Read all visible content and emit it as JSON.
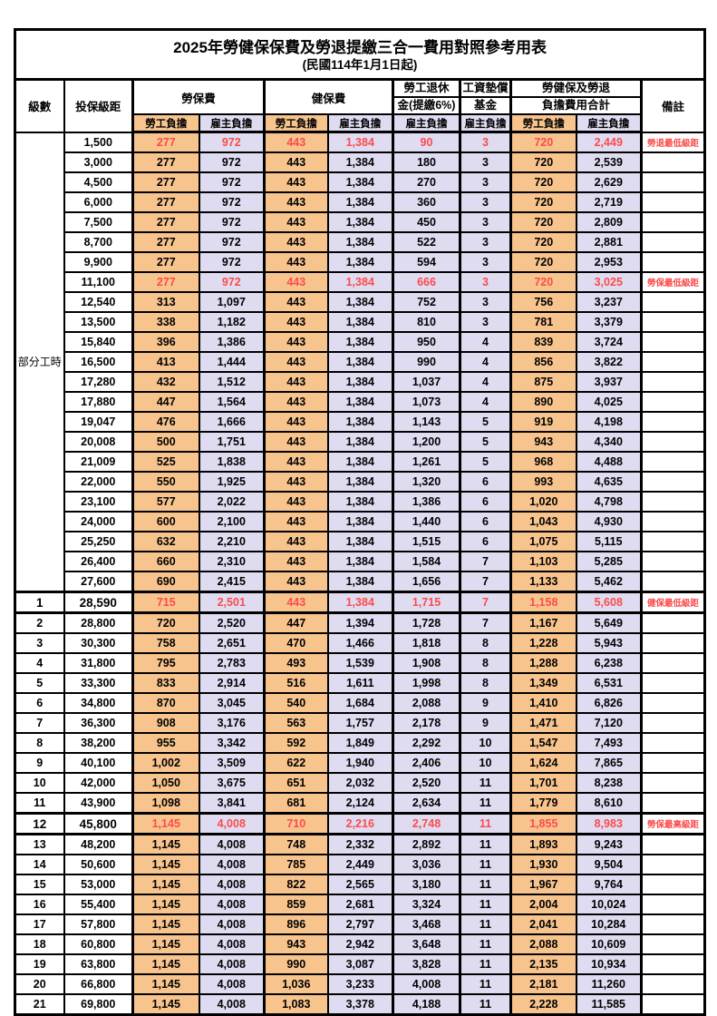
{
  "title": "2025年勞健保保費及勞退提繳三合一費用對照參考用表",
  "subtitle": "(民國114年1月1日起)",
  "colors": {
    "employee_bg": "#F8C48E",
    "employer_bg": "#DFDCF1",
    "highlight_red": "#FB4B4B",
    "border": "#000000",
    "background": "#FFFFFF"
  },
  "header": {
    "level": "級數",
    "bracket": "投保級距",
    "labor_insurance": "勞保費",
    "health_insurance": "健保費",
    "pension_line1": "勞工退休",
    "pension_line2": "金(提繳6%)",
    "wage_fund_line1": "工資墊償",
    "wage_fund_line2": "基金",
    "total_line1": "勞健保及勞退",
    "total_line2": "負擔費用合計",
    "remark": "備註",
    "employee": "勞工負擔",
    "employer": "雇主負擔"
  },
  "part_time_label": "部分工時",
  "part_time_rowspan": 23,
  "rows": [
    {
      "lv": "",
      "br": "1,500",
      "a": "277",
      "b": "972",
      "c": "443",
      "d": "1,384",
      "e": "90",
      "f": "3",
      "g": "720",
      "h": "2,449",
      "rm": "勞退最低級距",
      "red": true,
      "milestone": false
    },
    {
      "lv": "",
      "br": "3,000",
      "a": "277",
      "b": "972",
      "c": "443",
      "d": "1,384",
      "e": "180",
      "f": "3",
      "g": "720",
      "h": "2,539",
      "rm": "",
      "red": false,
      "milestone": false
    },
    {
      "lv": "",
      "br": "4,500",
      "a": "277",
      "b": "972",
      "c": "443",
      "d": "1,384",
      "e": "270",
      "f": "3",
      "g": "720",
      "h": "2,629",
      "rm": "",
      "red": false,
      "milestone": false
    },
    {
      "lv": "",
      "br": "6,000",
      "a": "277",
      "b": "972",
      "c": "443",
      "d": "1,384",
      "e": "360",
      "f": "3",
      "g": "720",
      "h": "2,719",
      "rm": "",
      "red": false,
      "milestone": false
    },
    {
      "lv": "",
      "br": "7,500",
      "a": "277",
      "b": "972",
      "c": "443",
      "d": "1,384",
      "e": "450",
      "f": "3",
      "g": "720",
      "h": "2,809",
      "rm": "",
      "red": false,
      "milestone": false
    },
    {
      "lv": "",
      "br": "8,700",
      "a": "277",
      "b": "972",
      "c": "443",
      "d": "1,384",
      "e": "522",
      "f": "3",
      "g": "720",
      "h": "2,881",
      "rm": "",
      "red": false,
      "milestone": false
    },
    {
      "lv": "",
      "br": "9,900",
      "a": "277",
      "b": "972",
      "c": "443",
      "d": "1,384",
      "e": "594",
      "f": "3",
      "g": "720",
      "h": "2,953",
      "rm": "",
      "red": false,
      "milestone": false
    },
    {
      "lv": "",
      "br": "11,100",
      "a": "277",
      "b": "972",
      "c": "443",
      "d": "1,384",
      "e": "666",
      "f": "3",
      "g": "720",
      "h": "3,025",
      "rm": "勞保最低級距",
      "red": true,
      "milestone": false
    },
    {
      "lv": "",
      "br": "12,540",
      "a": "313",
      "b": "1,097",
      "c": "443",
      "d": "1,384",
      "e": "752",
      "f": "3",
      "g": "756",
      "h": "3,237",
      "rm": "",
      "red": false,
      "milestone": false
    },
    {
      "lv": "",
      "br": "13,500",
      "a": "338",
      "b": "1,182",
      "c": "443",
      "d": "1,384",
      "e": "810",
      "f": "3",
      "g": "781",
      "h": "3,379",
      "rm": "",
      "red": false,
      "milestone": false
    },
    {
      "lv": "",
      "br": "15,840",
      "a": "396",
      "b": "1,386",
      "c": "443",
      "d": "1,384",
      "e": "950",
      "f": "4",
      "g": "839",
      "h": "3,724",
      "rm": "",
      "red": false,
      "milestone": false
    },
    {
      "lv": "",
      "br": "16,500",
      "a": "413",
      "b": "1,444",
      "c": "443",
      "d": "1,384",
      "e": "990",
      "f": "4",
      "g": "856",
      "h": "3,822",
      "rm": "",
      "red": false,
      "milestone": false
    },
    {
      "lv": "",
      "br": "17,280",
      "a": "432",
      "b": "1,512",
      "c": "443",
      "d": "1,384",
      "e": "1,037",
      "f": "4",
      "g": "875",
      "h": "3,937",
      "rm": "",
      "red": false,
      "milestone": false
    },
    {
      "lv": "",
      "br": "17,880",
      "a": "447",
      "b": "1,564",
      "c": "443",
      "d": "1,384",
      "e": "1,073",
      "f": "4",
      "g": "890",
      "h": "4,025",
      "rm": "",
      "red": false,
      "milestone": false
    },
    {
      "lv": "",
      "br": "19,047",
      "a": "476",
      "b": "1,666",
      "c": "443",
      "d": "1,384",
      "e": "1,143",
      "f": "5",
      "g": "919",
      "h": "4,198",
      "rm": "",
      "red": false,
      "milestone": false
    },
    {
      "lv": "",
      "br": "20,008",
      "a": "500",
      "b": "1,751",
      "c": "443",
      "d": "1,384",
      "e": "1,200",
      "f": "5",
      "g": "943",
      "h": "4,340",
      "rm": "",
      "red": false,
      "milestone": false
    },
    {
      "lv": "",
      "br": "21,009",
      "a": "525",
      "b": "1,838",
      "c": "443",
      "d": "1,384",
      "e": "1,261",
      "f": "5",
      "g": "968",
      "h": "4,488",
      "rm": "",
      "red": false,
      "milestone": false
    },
    {
      "lv": "",
      "br": "22,000",
      "a": "550",
      "b": "1,925",
      "c": "443",
      "d": "1,384",
      "e": "1,320",
      "f": "6",
      "g": "993",
      "h": "4,635",
      "rm": "",
      "red": false,
      "milestone": false
    },
    {
      "lv": "",
      "br": "23,100",
      "a": "577",
      "b": "2,022",
      "c": "443",
      "d": "1,384",
      "e": "1,386",
      "f": "6",
      "g": "1,020",
      "h": "4,798",
      "rm": "",
      "red": false,
      "milestone": false
    },
    {
      "lv": "",
      "br": "24,000",
      "a": "600",
      "b": "2,100",
      "c": "443",
      "d": "1,384",
      "e": "1,440",
      "f": "6",
      "g": "1,043",
      "h": "4,930",
      "rm": "",
      "red": false,
      "milestone": false
    },
    {
      "lv": "",
      "br": "25,250",
      "a": "632",
      "b": "2,210",
      "c": "443",
      "d": "1,384",
      "e": "1,515",
      "f": "6",
      "g": "1,075",
      "h": "5,115",
      "rm": "",
      "red": false,
      "milestone": false
    },
    {
      "lv": "",
      "br": "26,400",
      "a": "660",
      "b": "2,310",
      "c": "443",
      "d": "1,384",
      "e": "1,584",
      "f": "7",
      "g": "1,103",
      "h": "5,285",
      "rm": "",
      "red": false,
      "milestone": false
    },
    {
      "lv": "",
      "br": "27,600",
      "a": "690",
      "b": "2,415",
      "c": "443",
      "d": "1,384",
      "e": "1,656",
      "f": "7",
      "g": "1,133",
      "h": "5,462",
      "rm": "",
      "red": false,
      "milestone": false
    },
    {
      "lv": "1",
      "br": "28,590",
      "a": "715",
      "b": "2,501",
      "c": "443",
      "d": "1,384",
      "e": "1,715",
      "f": "7",
      "g": "1,158",
      "h": "5,608",
      "rm": "健保最低級距",
      "red": true,
      "milestone": true
    },
    {
      "lv": "2",
      "br": "28,800",
      "a": "720",
      "b": "2,520",
      "c": "447",
      "d": "1,394",
      "e": "1,728",
      "f": "7",
      "g": "1,167",
      "h": "5,649",
      "rm": "",
      "red": false,
      "milestone": false
    },
    {
      "lv": "3",
      "br": "30,300",
      "a": "758",
      "b": "2,651",
      "c": "470",
      "d": "1,466",
      "e": "1,818",
      "f": "8",
      "g": "1,228",
      "h": "5,943",
      "rm": "",
      "red": false,
      "milestone": false
    },
    {
      "lv": "4",
      "br": "31,800",
      "a": "795",
      "b": "2,783",
      "c": "493",
      "d": "1,539",
      "e": "1,908",
      "f": "8",
      "g": "1,288",
      "h": "6,238",
      "rm": "",
      "red": false,
      "milestone": false
    },
    {
      "lv": "5",
      "br": "33,300",
      "a": "833",
      "b": "2,914",
      "c": "516",
      "d": "1,611",
      "e": "1,998",
      "f": "8",
      "g": "1,349",
      "h": "6,531",
      "rm": "",
      "red": false,
      "milestone": false
    },
    {
      "lv": "6",
      "br": "34,800",
      "a": "870",
      "b": "3,045",
      "c": "540",
      "d": "1,684",
      "e": "2,088",
      "f": "9",
      "g": "1,410",
      "h": "6,826",
      "rm": "",
      "red": false,
      "milestone": false
    },
    {
      "lv": "7",
      "br": "36,300",
      "a": "908",
      "b": "3,176",
      "c": "563",
      "d": "1,757",
      "e": "2,178",
      "f": "9",
      "g": "1,471",
      "h": "7,120",
      "rm": "",
      "red": false,
      "milestone": false
    },
    {
      "lv": "8",
      "br": "38,200",
      "a": "955",
      "b": "3,342",
      "c": "592",
      "d": "1,849",
      "e": "2,292",
      "f": "10",
      "g": "1,547",
      "h": "7,493",
      "rm": "",
      "red": false,
      "milestone": false
    },
    {
      "lv": "9",
      "br": "40,100",
      "a": "1,002",
      "b": "3,509",
      "c": "622",
      "d": "1,940",
      "e": "2,406",
      "f": "10",
      "g": "1,624",
      "h": "7,865",
      "rm": "",
      "red": false,
      "milestone": false
    },
    {
      "lv": "10",
      "br": "42,000",
      "a": "1,050",
      "b": "3,675",
      "c": "651",
      "d": "2,032",
      "e": "2,520",
      "f": "11",
      "g": "1,701",
      "h": "8,238",
      "rm": "",
      "red": false,
      "milestone": false
    },
    {
      "lv": "11",
      "br": "43,900",
      "a": "1,098",
      "b": "3,841",
      "c": "681",
      "d": "2,124",
      "e": "2,634",
      "f": "11",
      "g": "1,779",
      "h": "8,610",
      "rm": "",
      "red": false,
      "milestone": false
    },
    {
      "lv": "12",
      "br": "45,800",
      "a": "1,145",
      "b": "4,008",
      "c": "710",
      "d": "2,216",
      "e": "2,748",
      "f": "11",
      "g": "1,855",
      "h": "8,983",
      "rm": "勞保最高級距",
      "red": true,
      "milestone": true
    },
    {
      "lv": "13",
      "br": "48,200",
      "a": "1,145",
      "b": "4,008",
      "c": "748",
      "d": "2,332",
      "e": "2,892",
      "f": "11",
      "g": "1,893",
      "h": "9,243",
      "rm": "",
      "red": false,
      "milestone": false
    },
    {
      "lv": "14",
      "br": "50,600",
      "a": "1,145",
      "b": "4,008",
      "c": "785",
      "d": "2,449",
      "e": "3,036",
      "f": "11",
      "g": "1,930",
      "h": "9,504",
      "rm": "",
      "red": false,
      "milestone": false
    },
    {
      "lv": "15",
      "br": "53,000",
      "a": "1,145",
      "b": "4,008",
      "c": "822",
      "d": "2,565",
      "e": "3,180",
      "f": "11",
      "g": "1,967",
      "h": "9,764",
      "rm": "",
      "red": false,
      "milestone": false
    },
    {
      "lv": "16",
      "br": "55,400",
      "a": "1,145",
      "b": "4,008",
      "c": "859",
      "d": "2,681",
      "e": "3,324",
      "f": "11",
      "g": "2,004",
      "h": "10,024",
      "rm": "",
      "red": false,
      "milestone": false
    },
    {
      "lv": "17",
      "br": "57,800",
      "a": "1,145",
      "b": "4,008",
      "c": "896",
      "d": "2,797",
      "e": "3,468",
      "f": "11",
      "g": "2,041",
      "h": "10,284",
      "rm": "",
      "red": false,
      "milestone": false
    },
    {
      "lv": "18",
      "br": "60,800",
      "a": "1,145",
      "b": "4,008",
      "c": "943",
      "d": "2,942",
      "e": "3,648",
      "f": "11",
      "g": "2,088",
      "h": "10,609",
      "rm": "",
      "red": false,
      "milestone": false
    },
    {
      "lv": "19",
      "br": "63,800",
      "a": "1,145",
      "b": "4,008",
      "c": "990",
      "d": "3,087",
      "e": "3,828",
      "f": "11",
      "g": "2,135",
      "h": "10,934",
      "rm": "",
      "red": false,
      "milestone": false
    },
    {
      "lv": "20",
      "br": "66,800",
      "a": "1,145",
      "b": "4,008",
      "c": "1,036",
      "d": "3,233",
      "e": "4,008",
      "f": "11",
      "g": "2,181",
      "h": "11,260",
      "rm": "",
      "red": false,
      "milestone": false
    },
    {
      "lv": "21",
      "br": "69,800",
      "a": "1,145",
      "b": "4,008",
      "c": "1,083",
      "d": "3,378",
      "e": "4,188",
      "f": "11",
      "g": "2,228",
      "h": "11,585",
      "rm": "",
      "red": false,
      "milestone": false
    }
  ]
}
